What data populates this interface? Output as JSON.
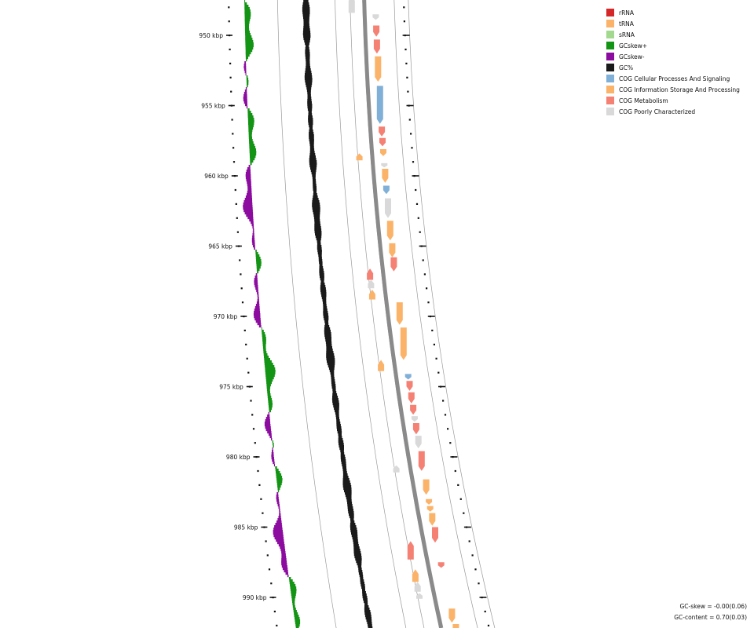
{
  "legend": {
    "items": [
      {
        "label": "rRNA",
        "color": "#d62728"
      },
      {
        "label": "tRNA",
        "color": "#fbb36a"
      },
      {
        "label": "sRNA",
        "color": "#a3d98f"
      },
      {
        "label": "GCskew+",
        "color": "#149414"
      },
      {
        "label": "GCskew-",
        "color": "#8c0ca0"
      },
      {
        "label": "GC%",
        "color": "#1a1a1a"
      },
      {
        "label": "COG Cellular Processes And Signaling",
        "color": "#80b0d8"
      },
      {
        "label": "COG Information Storage And Processing",
        "color": "#fbb36a"
      },
      {
        "label": "COG Metabolism",
        "color": "#f48174"
      },
      {
        "label": "COG Poorly Characterized",
        "color": "#d9d9d9"
      }
    ]
  },
  "stats": {
    "gc_skew": "GC-skew = -0.00(0.06)",
    "gc_content": "GC-content = 0.70(0.03)"
  },
  "ruler": {
    "ticks": [
      {
        "pos_kbp": 950,
        "label": "950 kbp"
      },
      {
        "pos_kbp": 955,
        "label": "955 kbp"
      },
      {
        "pos_kbp": 960,
        "label": "960 kbp"
      },
      {
        "pos_kbp": 965,
        "label": "965 kbp"
      },
      {
        "pos_kbp": 970,
        "label": "970 kbp"
      },
      {
        "pos_kbp": 975,
        "label": "975 kbp"
      },
      {
        "pos_kbp": 980,
        "label": "980 kbp"
      },
      {
        "pos_kbp": 985,
        "label": "985 kbp"
      },
      {
        "pos_kbp": 990,
        "label": "990 kbp"
      }
    ]
  },
  "features": [
    {
      "start": 947.2,
      "end": 948.4,
      "strand": "-",
      "cog": "poorly"
    },
    {
      "start": 948.5,
      "end": 948.9,
      "strand": "+",
      "cog": "poorly"
    },
    {
      "start": 949.3,
      "end": 950.1,
      "strand": "+",
      "cog": "metabolism"
    },
    {
      "start": 950.3,
      "end": 951.3,
      "strand": "+",
      "cog": "metabolism"
    },
    {
      "start": 951.5,
      "end": 953.3,
      "strand": "+",
      "cog": "information"
    },
    {
      "start": 953.6,
      "end": 956.3,
      "strand": "+",
      "cog": "cellular"
    },
    {
      "start": 956.5,
      "end": 957.2,
      "strand": "+",
      "cog": "metabolism"
    },
    {
      "start": 957.3,
      "end": 957.9,
      "strand": "+",
      "cog": "metabolism"
    },
    {
      "start": 958.1,
      "end": 958.6,
      "strand": "+",
      "cog": "information"
    },
    {
      "start": 958.4,
      "end": 958.9,
      "strand": "-",
      "cog": "information"
    },
    {
      "start": 959.1,
      "end": 959.4,
      "strand": "+",
      "cog": "poorly"
    },
    {
      "start": 959.5,
      "end": 960.5,
      "strand": "+",
      "cog": "information"
    },
    {
      "start": 960.7,
      "end": 961.3,
      "strand": "+",
      "cog": "cellular"
    },
    {
      "start": 961.6,
      "end": 963.0,
      "strand": "+",
      "cog": "poorly"
    },
    {
      "start": 963.2,
      "end": 964.6,
      "strand": "+",
      "cog": "information"
    },
    {
      "start": 964.8,
      "end": 965.8,
      "strand": "+",
      "cog": "information"
    },
    {
      "start": 965.8,
      "end": 966.8,
      "strand": "+",
      "cog": "metabolism"
    },
    {
      "start": 966.6,
      "end": 967.4,
      "strand": "-",
      "cog": "metabolism"
    },
    {
      "start": 967.4,
      "end": 968.0,
      "strand": "-",
      "cog": "poorly"
    },
    {
      "start": 968.1,
      "end": 968.8,
      "strand": "-",
      "cog": "information"
    },
    {
      "start": 969.0,
      "end": 970.6,
      "strand": "+",
      "cog": "information"
    },
    {
      "start": 970.8,
      "end": 973.1,
      "strand": "+",
      "cog": "information"
    },
    {
      "start": 973.1,
      "end": 973.9,
      "strand": "-",
      "cog": "information"
    },
    {
      "start": 974.1,
      "end": 974.5,
      "strand": "+",
      "cog": "cellular"
    },
    {
      "start": 974.6,
      "end": 975.3,
      "strand": "+",
      "cog": "metabolism"
    },
    {
      "start": 975.4,
      "end": 976.2,
      "strand": "+",
      "cog": "metabolism"
    },
    {
      "start": 976.3,
      "end": 977.0,
      "strand": "+",
      "cog": "metabolism"
    },
    {
      "start": 977.1,
      "end": 977.5,
      "strand": "+",
      "cog": "poorly"
    },
    {
      "start": 977.6,
      "end": 978.4,
      "strand": "+",
      "cog": "metabolism"
    },
    {
      "start": 978.5,
      "end": 979.4,
      "strand": "+",
      "cog": "poorly"
    },
    {
      "start": 979.6,
      "end": 981.0,
      "strand": "+",
      "cog": "metabolism"
    },
    {
      "start": 980.6,
      "end": 981.1,
      "strand": "-",
      "cog": "poorly"
    },
    {
      "start": 981.6,
      "end": 982.7,
      "strand": "+",
      "cog": "information"
    },
    {
      "start": 983.0,
      "end": 983.4,
      "strand": "+",
      "cog": "information"
    },
    {
      "start": 983.5,
      "end": 983.9,
      "strand": "+",
      "cog": "information"
    },
    {
      "start": 984.0,
      "end": 984.9,
      "strand": "+",
      "cog": "information"
    },
    {
      "start": 985.0,
      "end": 986.1,
      "strand": "+",
      "cog": "metabolism"
    },
    {
      "start": 986.0,
      "end": 987.3,
      "strand": "-",
      "cog": "metabolism"
    },
    {
      "start": 987.5,
      "end": 987.9,
      "strand": "+",
      "cog": "metabolism"
    },
    {
      "start": 988.0,
      "end": 988.9,
      "strand": "-",
      "cog": "information"
    },
    {
      "start": 988.9,
      "end": 989.6,
      "strand": "-",
      "cog": "poorly"
    },
    {
      "start": 989.7,
      "end": 990.1,
      "strand": "-",
      "cog": "poorly"
    },
    {
      "start": 990.8,
      "end": 991.8,
      "strand": "+",
      "cog": "information"
    },
    {
      "start": 991.9,
      "end": 993.2,
      "strand": "+",
      "cog": "information"
    }
  ]
}
